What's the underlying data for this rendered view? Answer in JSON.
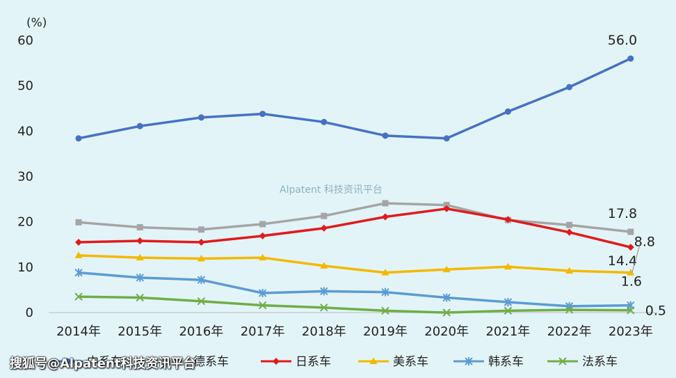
{
  "chart_data": {
    "type": "line",
    "unit": "(%)",
    "categories": [
      "2014年",
      "2015年",
      "2016年",
      "2017年",
      "2018年",
      "2019年",
      "2020年",
      "2021年",
      "2022年",
      "2023年"
    ],
    "ylim": [
      0,
      60
    ],
    "yticks": [
      0,
      10,
      20,
      30,
      40,
      50,
      60
    ],
    "grid": false,
    "legend_position": "bottom",
    "series": [
      {
        "name": "中系车",
        "color": "#4472c4",
        "marker": "circle",
        "values": [
          38.4,
          41.1,
          43.0,
          43.8,
          42.0,
          39.0,
          38.4,
          44.3,
          49.7,
          56.0
        ]
      },
      {
        "name": "德系车",
        "color": "#a5a5a5",
        "marker": "square",
        "values": [
          19.9,
          18.8,
          18.3,
          19.5,
          21.3,
          24.1,
          23.7,
          20.4,
          19.3,
          17.8
        ]
      },
      {
        "name": "日系车",
        "color": "#e11a1a",
        "marker": "diamond",
        "values": [
          15.5,
          15.8,
          15.5,
          16.9,
          18.6,
          21.1,
          22.9,
          20.5,
          17.7,
          14.4
        ]
      },
      {
        "name": "美系车",
        "color": "#f4b800",
        "marker": "triangle",
        "values": [
          12.6,
          12.1,
          11.9,
          12.1,
          10.3,
          8.8,
          9.5,
          10.1,
          9.2,
          8.8
        ]
      },
      {
        "name": "韩系车",
        "color": "#5b9bd5",
        "marker": "asterisk",
        "values": [
          8.8,
          7.7,
          7.2,
          4.3,
          4.7,
          4.5,
          3.3,
          2.3,
          1.4,
          1.6
        ]
      },
      {
        "name": "法系车",
        "color": "#70ad47",
        "marker": "x",
        "values": [
          3.5,
          3.3,
          2.5,
          1.6,
          1.1,
          0.4,
          0.0,
          0.4,
          0.6,
          0.5
        ]
      }
    ],
    "end_labels": [
      {
        "series": 0,
        "text": "56.0"
      },
      {
        "series": 1,
        "text": "17.8"
      },
      {
        "series": 2,
        "text": "14.4"
      },
      {
        "series": 3,
        "text": "8.8"
      },
      {
        "series": 4,
        "text": "1.6"
      },
      {
        "series": 5,
        "text": "0.5"
      }
    ],
    "watermark": "Alpatent 科技资讯平台"
  },
  "footer_watermark": "搜狐号@Alpatent科技资讯平台"
}
